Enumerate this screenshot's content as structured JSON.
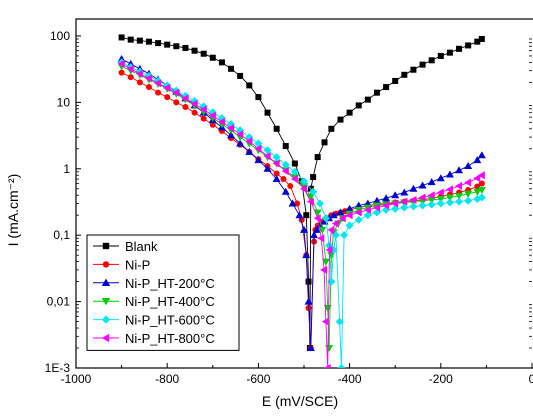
{
  "chart_data": {
    "type": "scatter",
    "xlabel": "E (mV/SCE)",
    "ylabel": "I (mA.cm⁻²)",
    "x_scale": "linear",
    "y_scale": "log",
    "xlim": [
      -1000,
      0
    ],
    "ylim": [
      0.001,
      180
    ],
    "x_ticks": [
      -1000,
      -800,
      -600,
      -400,
      -200,
      0
    ],
    "x_tick_labels": [
      "-1000",
      "-800",
      "-600",
      "-400",
      "-200",
      "0"
    ],
    "y_ticks": [
      0.001,
      0.01,
      0.1,
      1,
      10,
      100
    ],
    "y_tick_labels": [
      "1E-3",
      "0,01",
      "0,1",
      "1",
      "10",
      "100"
    ],
    "legend_position": "bottom-left",
    "grid": false,
    "series": [
      {
        "name": "Blank",
        "color": "#000000",
        "marker": "square",
        "x": [
          -900,
          -880,
          -860,
          -840,
          -820,
          -800,
          -780,
          -760,
          -740,
          -720,
          -700,
          -680,
          -660,
          -640,
          -620,
          -600,
          -580,
          -560,
          -540,
          -520,
          -505,
          -495,
          -490,
          -487,
          -485,
          -480,
          -470,
          -455,
          -440,
          -420,
          -400,
          -380,
          -360,
          -340,
          -320,
          -300,
          -280,
          -260,
          -240,
          -220,
          -200,
          -180,
          -160,
          -140,
          -120,
          -110
        ],
        "y": [
          95,
          88,
          85,
          82,
          78,
          74,
          70,
          66,
          60,
          54,
          47,
          40,
          32,
          25,
          18,
          12,
          7,
          4,
          2.2,
          1.2,
          0.65,
          0.2,
          0.02,
          0.002,
          0.5,
          0.75,
          1.5,
          2.5,
          4,
          5.5,
          7,
          9,
          11,
          14,
          17,
          21,
          26,
          31,
          37,
          43,
          50,
          56,
          64,
          72,
          82,
          90
        ]
      },
      {
        "name": "Ni-P",
        "color": "#ff0000",
        "marker": "circle",
        "x": [
          -900,
          -880,
          -860,
          -840,
          -820,
          -800,
          -780,
          -760,
          -740,
          -720,
          -700,
          -680,
          -660,
          -640,
          -620,
          -600,
          -580,
          -560,
          -545,
          -530,
          -515,
          -505,
          -495,
          -490,
          -485,
          -478,
          -475,
          -470,
          -460,
          -450,
          -440,
          -430,
          -420,
          -410,
          -400,
          -380,
          -360,
          -340,
          -320,
          -300,
          -280,
          -260,
          -240,
          -220,
          -200,
          -180,
          -160,
          -140,
          -120,
          -110
        ],
        "y": [
          28,
          24,
          20,
          17,
          14,
          12,
          10,
          8.5,
          7,
          5.7,
          4.6,
          3.7,
          2.9,
          2.3,
          1.8,
          1.4,
          1.1,
          0.85,
          0.7,
          0.55,
          0.3,
          0.17,
          0.05,
          0.008,
          0.002,
          0.08,
          0.12,
          0.14,
          0.16,
          0.18,
          0.2,
          0.21,
          0.22,
          0.23,
          0.24,
          0.26,
          0.28,
          0.29,
          0.3,
          0.31,
          0.32,
          0.33,
          0.34,
          0.36,
          0.38,
          0.41,
          0.44,
          0.48,
          0.54,
          0.6
        ]
      },
      {
        "name": "Ni-P_HT-200°C",
        "color": "#0000cc",
        "marker": "triangle-up",
        "x": [
          -900,
          -880,
          -860,
          -840,
          -820,
          -800,
          -780,
          -760,
          -740,
          -720,
          -700,
          -680,
          -660,
          -640,
          -620,
          -600,
          -580,
          -560,
          -540,
          -525,
          -510,
          -500,
          -495,
          -490,
          -485,
          -478,
          -472,
          -465,
          -455,
          -445,
          -435,
          -420,
          -400,
          -380,
          -360,
          -340,
          -320,
          -300,
          -280,
          -260,
          -240,
          -220,
          -200,
          -180,
          -160,
          -140,
          -120,
          -110
        ],
        "y": [
          45,
          38,
          32,
          27,
          22,
          18,
          14.5,
          11.5,
          9,
          7,
          5.4,
          4.2,
          3.2,
          2.4,
          1.8,
          1.35,
          1.0,
          0.7,
          0.45,
          0.3,
          0.2,
          0.12,
          0.05,
          0.01,
          0.002,
          0.1,
          0.12,
          0.14,
          0.16,
          0.18,
          0.2,
          0.22,
          0.25,
          0.28,
          0.3,
          0.33,
          0.36,
          0.4,
          0.44,
          0.5,
          0.56,
          0.63,
          0.72,
          0.82,
          0.95,
          1.1,
          1.35,
          1.6
        ]
      },
      {
        "name": "Ni-P_HT-400°C",
        "color": "#00cc00",
        "marker": "triangle-down",
        "x": [
          -900,
          -880,
          -860,
          -840,
          -820,
          -800,
          -780,
          -760,
          -740,
          -720,
          -700,
          -680,
          -660,
          -640,
          -620,
          -600,
          -580,
          -560,
          -540,
          -520,
          -500,
          -485,
          -470,
          -460,
          -452,
          -448,
          -445,
          -440,
          -435,
          -425,
          -415,
          -400,
          -380,
          -360,
          -340,
          -320,
          -300,
          -280,
          -260,
          -240,
          -220,
          -200,
          -180,
          -160,
          -140,
          -120,
          -110
        ],
        "y": [
          35,
          30,
          26,
          22,
          19,
          16,
          13.5,
          11,
          9,
          7.3,
          5.9,
          4.7,
          3.8,
          3.0,
          2.4,
          1.9,
          1.5,
          1.2,
          0.95,
          0.75,
          0.55,
          0.38,
          0.22,
          0.12,
          0.04,
          0.008,
          0.002,
          0.05,
          0.11,
          0.15,
          0.18,
          0.21,
          0.24,
          0.26,
          0.28,
          0.29,
          0.3,
          0.31,
          0.32,
          0.33,
          0.34,
          0.35,
          0.37,
          0.39,
          0.42,
          0.45,
          0.48
        ]
      },
      {
        "name": "Ni-P_HT-600°C",
        "color": "#00e5ee",
        "marker": "diamond",
        "x": [
          -900,
          -880,
          -860,
          -840,
          -820,
          -800,
          -780,
          -760,
          -740,
          -720,
          -700,
          -680,
          -660,
          -640,
          -620,
          -600,
          -580,
          -560,
          -540,
          -520,
          -500,
          -480,
          -465,
          -452,
          -445,
          -440,
          -435,
          -430,
          -422,
          -418,
          -412,
          -400,
          -380,
          -360,
          -340,
          -320,
          -300,
          -280,
          -260,
          -240,
          -220,
          -200,
          -180,
          -160,
          -140,
          -120,
          -110
        ],
        "y": [
          40,
          34,
          29,
          25,
          21,
          18,
          15,
          12.5,
          10.5,
          8.7,
          7.1,
          5.8,
          4.7,
          3.8,
          3.0,
          2.4,
          1.9,
          1.5,
          1.15,
          0.9,
          0.65,
          0.45,
          0.3,
          0.18,
          0.07,
          0.02,
          0.06,
          0.1,
          0.005,
          0.001,
          0.1,
          0.14,
          0.17,
          0.2,
          0.22,
          0.24,
          0.25,
          0.26,
          0.27,
          0.28,
          0.29,
          0.3,
          0.31,
          0.32,
          0.33,
          0.35,
          0.37
        ]
      },
      {
        "name": "Ni-P_HT-800°C",
        "color": "#ff00ff",
        "marker": "triangle-left",
        "x": [
          -900,
          -880,
          -860,
          -840,
          -820,
          -800,
          -780,
          -760,
          -740,
          -720,
          -700,
          -680,
          -660,
          -640,
          -620,
          -600,
          -580,
          -560,
          -540,
          -520,
          -500,
          -485,
          -470,
          -462,
          -456,
          -452,
          -448,
          -444,
          -440,
          -430,
          -415,
          -400,
          -380,
          -360,
          -340,
          -320,
          -300,
          -280,
          -260,
          -240,
          -220,
          -200,
          -180,
          -160,
          -140,
          -120,
          -110
        ],
        "y": [
          38,
          32,
          27,
          23,
          19.5,
          16.5,
          14,
          11.5,
          9.5,
          7.8,
          6.3,
          5.1,
          4.1,
          3.3,
          2.6,
          2.0,
          1.55,
          1.2,
          0.92,
          0.7,
          0.5,
          0.32,
          0.18,
          0.09,
          0.03,
          0.005,
          0.001,
          0.06,
          0.12,
          0.15,
          0.18,
          0.2,
          0.22,
          0.24,
          0.26,
          0.28,
          0.3,
          0.32,
          0.34,
          0.37,
          0.4,
          0.44,
          0.49,
          0.55,
          0.62,
          0.72,
          0.8
        ]
      }
    ]
  }
}
